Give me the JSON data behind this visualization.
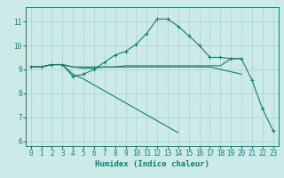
{
  "xlabel": "Humidex (Indice chaleur)",
  "bg_color": "#cceae7",
  "grid_color": "#aad4d0",
  "line_color": "#1a7a6e",
  "xlim": [
    -0.5,
    23.5
  ],
  "ylim": [
    5.8,
    11.6
  ],
  "yticks": [
    6,
    7,
    8,
    9,
    10,
    11
  ],
  "xticks": [
    0,
    1,
    2,
    3,
    4,
    5,
    6,
    7,
    8,
    9,
    10,
    11,
    12,
    13,
    14,
    15,
    16,
    17,
    18,
    19,
    20,
    21,
    22,
    23
  ],
  "series": [
    {
      "x": [
        0,
        1,
        2,
        3,
        4,
        5,
        6,
        7,
        8,
        9,
        10,
        11,
        12,
        13,
        14,
        15,
        16,
        17,
        18,
        19,
        20,
        21,
        22,
        23
      ],
      "y": [
        9.1,
        9.1,
        9.2,
        9.2,
        8.7,
        8.8,
        9.0,
        9.3,
        9.6,
        9.75,
        10.05,
        10.5,
        11.1,
        11.1,
        10.8,
        10.4,
        10.0,
        9.5,
        9.5,
        9.45,
        9.45,
        8.55,
        7.35,
        6.45
      ],
      "marker": true
    },
    {
      "x": [
        0,
        1,
        2,
        3,
        4,
        5,
        6,
        7,
        8,
        9,
        10,
        11,
        12,
        13,
        14,
        15,
        16,
        17,
        18,
        19,
        20
      ],
      "y": [
        9.1,
        9.1,
        9.2,
        9.2,
        9.1,
        9.05,
        9.05,
        9.1,
        9.1,
        9.15,
        9.15,
        9.15,
        9.15,
        9.15,
        9.15,
        9.15,
        9.15,
        9.15,
        9.15,
        9.45,
        9.45
      ],
      "marker": false
    },
    {
      "x": [
        0,
        1,
        2,
        3,
        4,
        5,
        6,
        7,
        8,
        9,
        10,
        11,
        12,
        13,
        14,
        15,
        16,
        17,
        18,
        19,
        20
      ],
      "y": [
        9.1,
        9.1,
        9.2,
        9.2,
        9.1,
        9.1,
        9.1,
        9.1,
        9.1,
        9.1,
        9.1,
        9.1,
        9.1,
        9.1,
        9.1,
        9.1,
        9.1,
        9.1,
        9.0,
        8.9,
        8.8
      ],
      "marker": false
    },
    {
      "x": [
        0,
        1,
        2,
        3,
        4,
        5,
        6,
        7,
        8,
        9,
        10,
        11,
        12,
        13,
        14,
        15,
        16,
        17,
        18,
        19,
        20,
        21,
        22,
        23
      ],
      "y": [
        9.1,
        9.1,
        9.2,
        9.2,
        8.8,
        8.6,
        8.35,
        8.1,
        7.85,
        7.6,
        7.35,
        7.1,
        6.85,
        6.6,
        6.35,
        null,
        null,
        null,
        null,
        null,
        null,
        null,
        null,
        null
      ],
      "marker": false
    }
  ]
}
